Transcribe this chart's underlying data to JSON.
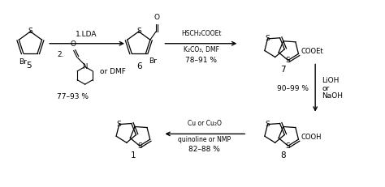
{
  "bg_color": "#ffffff",
  "fig_width": 4.74,
  "fig_height": 2.31,
  "dpi": 100,
  "reagents": {
    "step1_top": "1.LDA",
    "step1_bot1": "2.",
    "step1_yield": "77–93 %",
    "step2_top": "HSCH₂COOEt",
    "step2_bot": "K₂CO₃, DMF",
    "step2_yield": "78–91 %",
    "step3_top": "LiOH",
    "step3_mid": "or",
    "step3_bot": "NaOH",
    "step3_yield": "90–99 %",
    "step4_top": "Cu or Cu₂O",
    "step4_bot": "quinoline or NMP",
    "step4_yield": "82–88 %"
  },
  "colors": {
    "black": "#000000",
    "white": "#ffffff"
  }
}
